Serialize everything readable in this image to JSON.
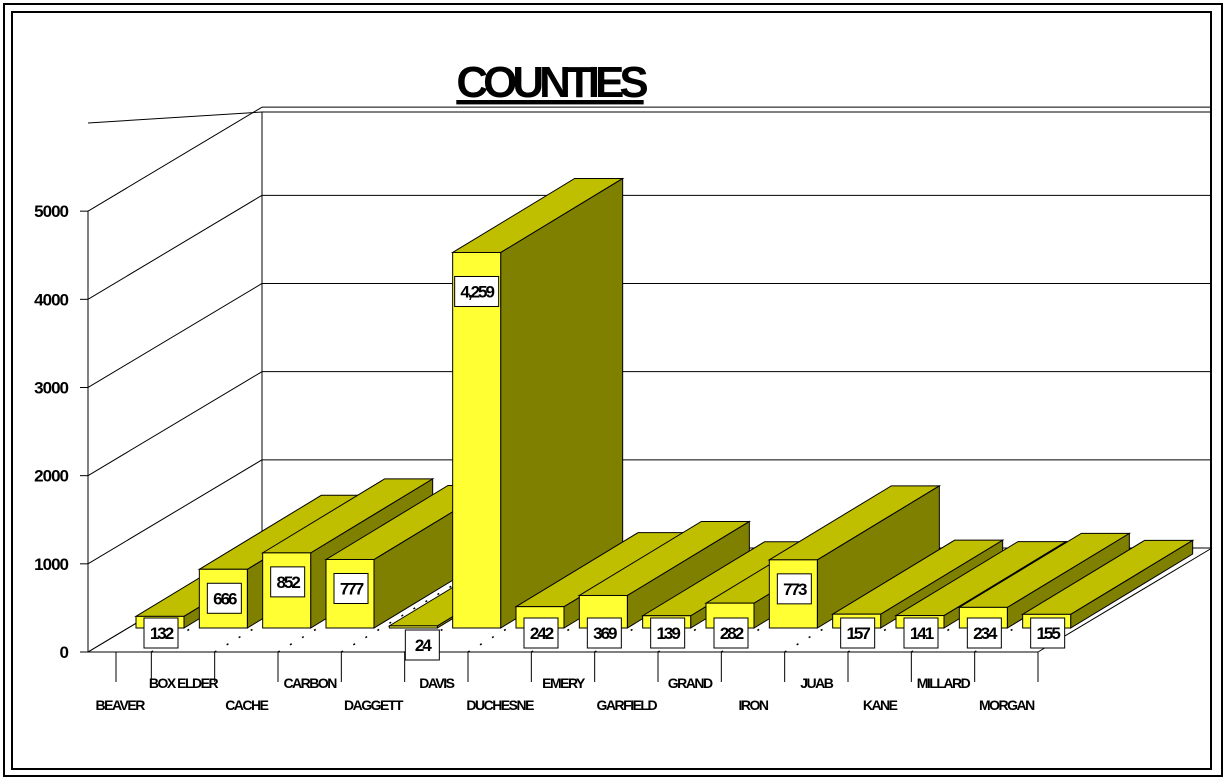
{
  "chart_data": {
    "type": "bar",
    "title": "COUNTIES",
    "categories": [
      "BEAVER",
      "BOX ELDER",
      "CACHE",
      "CARBON",
      "DAGGETT",
      "DAVIS",
      "DUCHESNE",
      "EMERY",
      "GARFIELD",
      "GRAND",
      "IRON",
      "JUAB",
      "KANE",
      "MILLARD",
      "MORGAN"
    ],
    "values": [
      132,
      666,
      852,
      777,
      24,
      4259,
      242,
      369,
      139,
      282,
      773,
      157,
      141,
      234,
      155
    ],
    "data_labels": [
      "132",
      "666",
      "852",
      "777",
      "24",
      "4,259",
      "242",
      "369",
      "139",
      "282",
      "773",
      "157",
      "141",
      "234",
      "155"
    ],
    "y_ticks": [
      "0",
      "1000",
      "2000",
      "3000",
      "4000",
      "5000"
    ],
    "ylim": [
      0,
      6000
    ],
    "xlabel": "",
    "ylabel": "",
    "grid": true,
    "three_d": true,
    "colors": {
      "bar_front": "#ffff33",
      "bar_top": "#bfbf00",
      "bar_side": "#808000",
      "frame": "#000000"
    }
  }
}
